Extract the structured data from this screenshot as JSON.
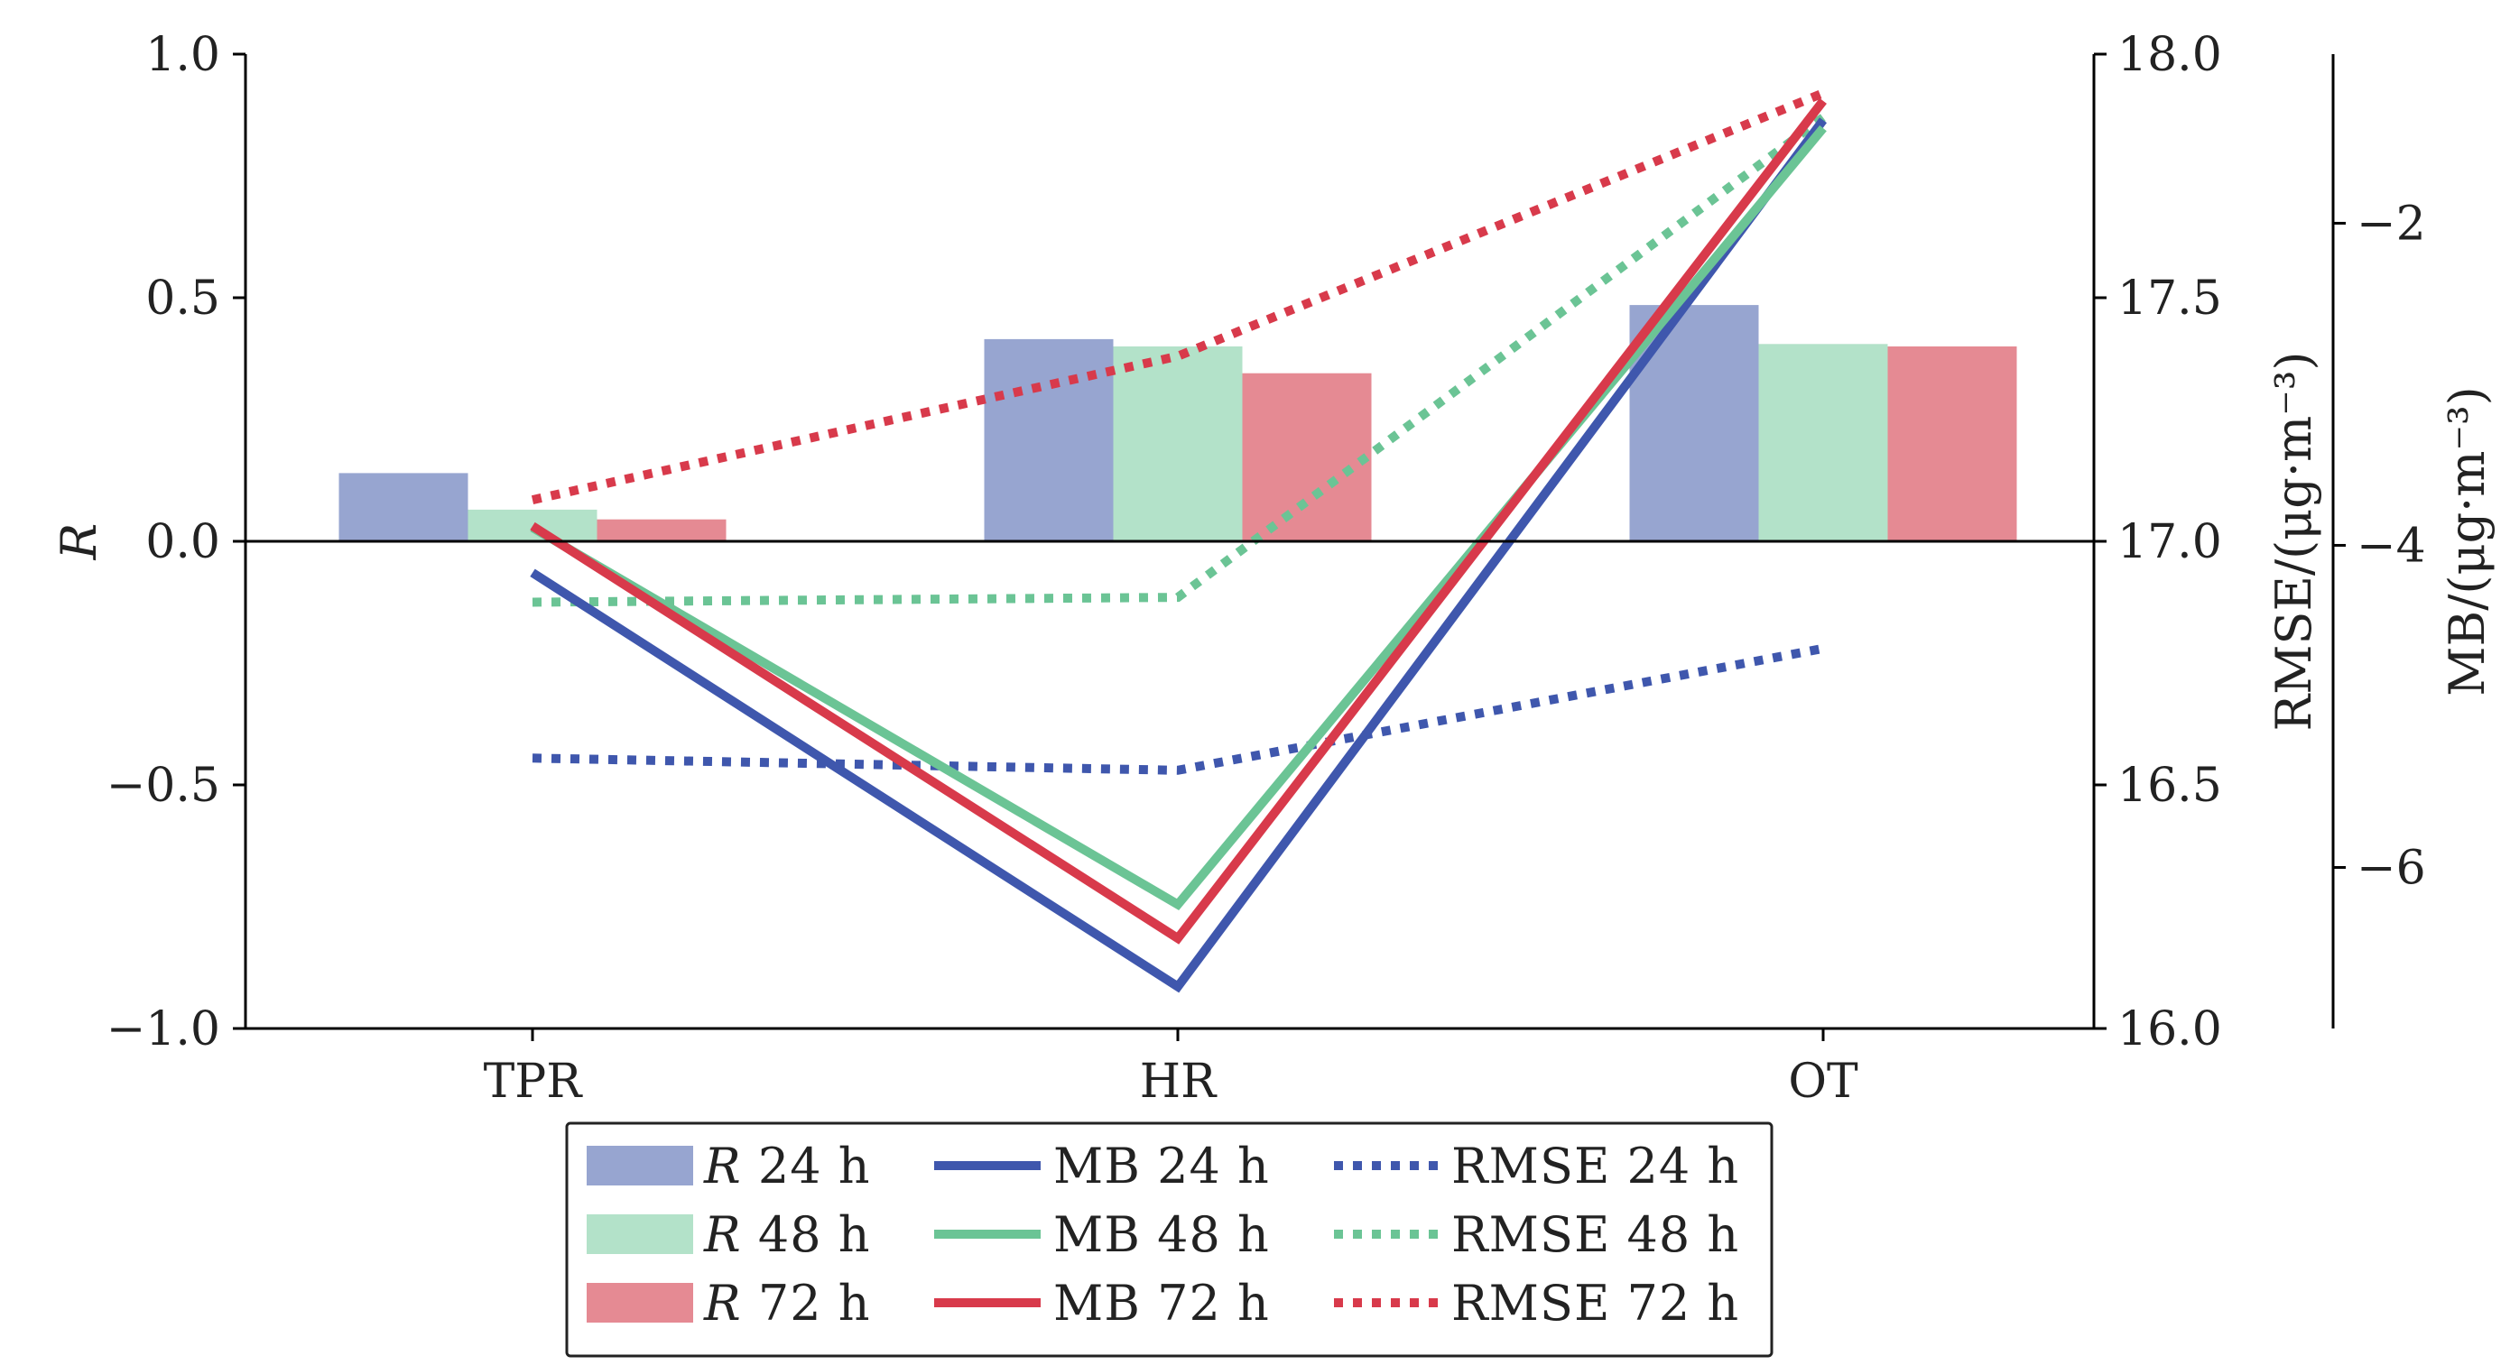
{
  "chart_data": {
    "type": "bar+line",
    "categories": [
      "TPR",
      "HR",
      "OT"
    ],
    "axes": {
      "left": {
        "label": "R",
        "ticks": [
          "1.0",
          "0.5",
          "0.0",
          "−0.5",
          "−1.0"
        ],
        "tick_values": [
          1.0,
          0.5,
          0.0,
          -0.5,
          -1.0
        ],
        "ylim": [
          -1.0,
          1.0
        ]
      },
      "right": {
        "label": "RMSE/(μg·m⁻³)",
        "ticks": [
          "18.0",
          "17.5",
          "17.0",
          "16.5",
          "16.0"
        ],
        "tick_values": [
          18.0,
          17.5,
          17.0,
          16.5,
          16.0
        ],
        "ylim": [
          16.0,
          18.0
        ]
      },
      "right2": {
        "label": "MB/(μg·m⁻³)",
        "ticks": [
          "−2",
          "−4",
          "−6"
        ],
        "tick_values": [
          -2,
          -4,
          -6
        ],
        "ylim": [
          -7.0,
          -0.95
        ]
      }
    },
    "bars": [
      {
        "name": "R 24 h",
        "prefix": "R",
        "suffix": " 24 h",
        "color": "#97a5d0",
        "values": [
          0.14,
          0.415,
          0.485
        ]
      },
      {
        "name": "R 48 h",
        "prefix": "R",
        "suffix": " 48 h",
        "color": "#b3e2c9",
        "values": [
          0.065,
          0.4,
          0.405
        ]
      },
      {
        "name": "R 72 h",
        "prefix": "R",
        "suffix": " 72 h",
        "color": "#e58a93",
        "values": [
          0.045,
          0.345,
          0.4
        ]
      }
    ],
    "mb": [
      {
        "name": "MB 24 h",
        "color": "#3f57ad",
        "values": [
          -4.17,
          -6.74,
          -1.36
        ]
      },
      {
        "name": "MB 48 h",
        "color": "#6bc495",
        "values": [
          -3.89,
          -6.23,
          -1.41
        ]
      },
      {
        "name": "MB 72 h",
        "color": "#d83a4b",
        "values": [
          -3.88,
          -6.44,
          -1.24
        ]
      }
    ],
    "rmse": [
      {
        "name": "RMSE 24 h",
        "color": "#3f57ad",
        "values": [
          16.555,
          16.53,
          16.78
        ]
      },
      {
        "name": "RMSE 48 h",
        "color": "#6bc495",
        "values": [
          16.875,
          16.885,
          17.87
        ]
      },
      {
        "name": "RMSE 72 h",
        "color": "#d83a4b",
        "values": [
          17.085,
          17.38,
          17.92
        ]
      }
    ],
    "zero_line": true,
    "grid": false,
    "legend_position": "bottom-center"
  }
}
